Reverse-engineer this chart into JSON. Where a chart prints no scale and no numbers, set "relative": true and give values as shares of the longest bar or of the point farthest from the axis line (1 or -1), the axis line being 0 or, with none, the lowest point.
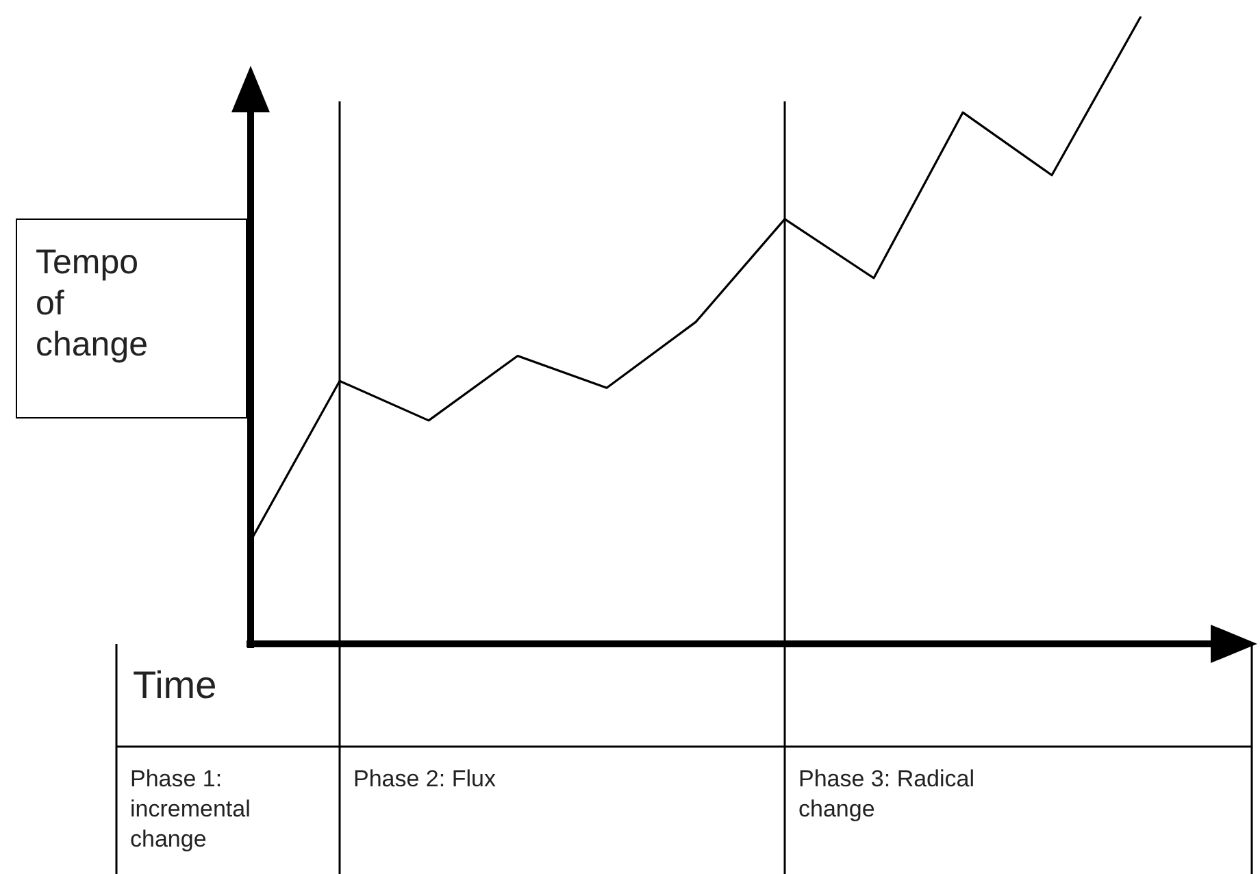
{
  "chart_data": {
    "type": "line",
    "relative": true,
    "ylabel": "Tempo of change",
    "xlabel": "Time",
    "categories": [
      null,
      null,
      null,
      null,
      null,
      null,
      null,
      null,
      null,
      null,
      null
    ],
    "series": [
      {
        "color": "#000000",
        "values": [
          0.164,
          0.419,
          0.356,
          0.459,
          0.408,
          0.513,
          0.677,
          0.583,
          0.847,
          0.747,
          1
        ]
      }
    ],
    "annotations": [
      "Phase 1: incremental change",
      "Phase 2: Flux",
      "Phase 3: Radical change"
    ],
    "legend": false
  }
}
